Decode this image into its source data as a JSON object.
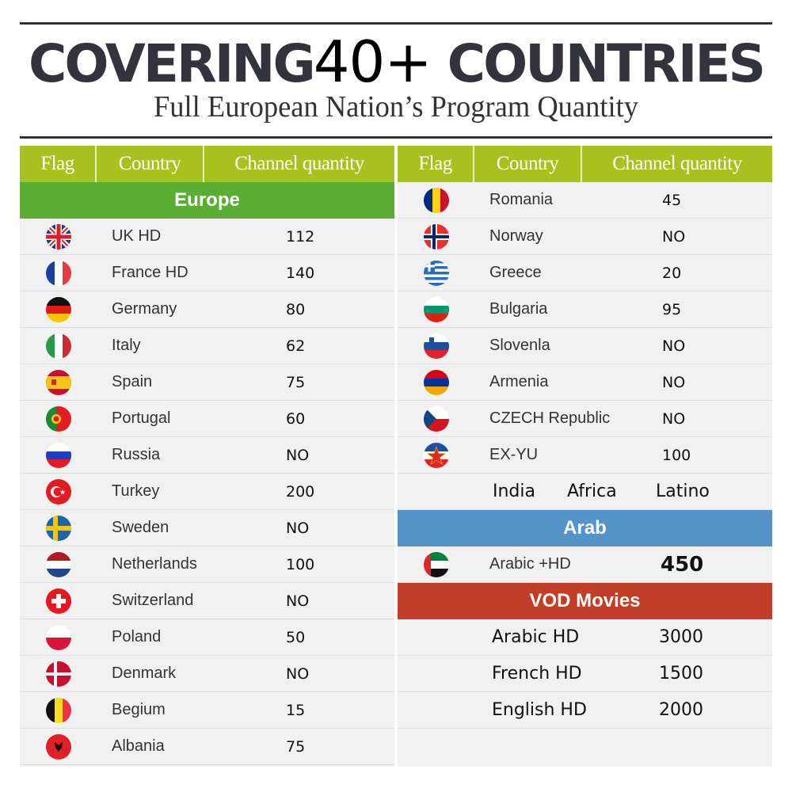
{
  "header": {
    "headline_pre": "COVERING",
    "headline_num": "40+",
    "headline_post": " COUNTRIES",
    "subhead": "Full European Nation’s Program Quantity"
  },
  "table_headers": {
    "flag": "Flag",
    "country": "Country",
    "channel_quantity": "Channel quantity"
  },
  "sections": {
    "europe": "Europe",
    "arab": "Arab",
    "vod": "VOD Movies"
  },
  "colors": {
    "header_bg": "#a9c11f",
    "europe_bg": "#5aae33",
    "arab_bg": "#5494c9",
    "vod_bg": "#c13e28",
    "row_bg": "#f1f1f1"
  },
  "left_rows": [
    {
      "flag": "uk-flag-icon",
      "country": "UK HD",
      "qty": "112"
    },
    {
      "flag": "france-flag-icon",
      "country": "France  HD",
      "qty": "140"
    },
    {
      "flag": "germany-flag-icon",
      "country": "Germany",
      "qty": "80"
    },
    {
      "flag": "italy-flag-icon",
      "country": "Italy",
      "qty": "62"
    },
    {
      "flag": "spain-flag-icon",
      "country": "Spain",
      "qty": "75"
    },
    {
      "flag": "portugal-flag-icon",
      "country": "Portugal",
      "qty": "60"
    },
    {
      "flag": "russia-flag-icon",
      "country": "Russia",
      "qty": "NO"
    },
    {
      "flag": "turkey-flag-icon",
      "country": "Turkey",
      "qty": "200"
    },
    {
      "flag": "sweden-flag-icon",
      "country": "Sweden",
      "qty": "NO"
    },
    {
      "flag": "netherlands-flag-icon",
      "country": "Netherlands",
      "qty": "100"
    },
    {
      "flag": "switzerland-flag-icon",
      "country": "Switzerland",
      "qty": "NO"
    },
    {
      "flag": "poland-flag-icon",
      "country": "Poland",
      "qty": "50"
    },
    {
      "flag": "denmark-flag-icon",
      "country": "Denmark",
      "qty": "NO"
    },
    {
      "flag": "belgium-flag-icon",
      "country": "Begium",
      "qty": "15"
    },
    {
      "flag": "albania-flag-icon",
      "country": "Albania",
      "qty": "75"
    }
  ],
  "right_rows": [
    {
      "flag": "romania-flag-icon",
      "country": "Romania",
      "qty": "45"
    },
    {
      "flag": "norway-flag-icon",
      "country": "Norway",
      "qty": "NO"
    },
    {
      "flag": "greece-flag-icon",
      "country": "Greece",
      "qty": "20"
    },
    {
      "flag": "bulgaria-flag-icon",
      "country": "Bulgaria",
      "qty": "95"
    },
    {
      "flag": "slovenia-flag-icon",
      "country": "Slovenla",
      "qty": "NO"
    },
    {
      "flag": "armenia-flag-icon",
      "country": "Armenia",
      "qty": "NO"
    },
    {
      "flag": "czech-flag-icon",
      "country": "CZECH Republic",
      "qty": "NO"
    },
    {
      "flag": "yugoslavia-flag-icon",
      "country": "EX-YU",
      "qty": "100"
    }
  ],
  "misc_row": [
    "India",
    "Africa",
    "Latino"
  ],
  "arab_row": {
    "flag": "uae-flag-icon",
    "country": "Arabic +HD",
    "qty": "450"
  },
  "vod_rows": [
    {
      "title": "Arabic HD",
      "qty": "3000"
    },
    {
      "title": "French HD",
      "qty": "1500"
    },
    {
      "title": "English HD",
      "qty": "2000"
    }
  ]
}
